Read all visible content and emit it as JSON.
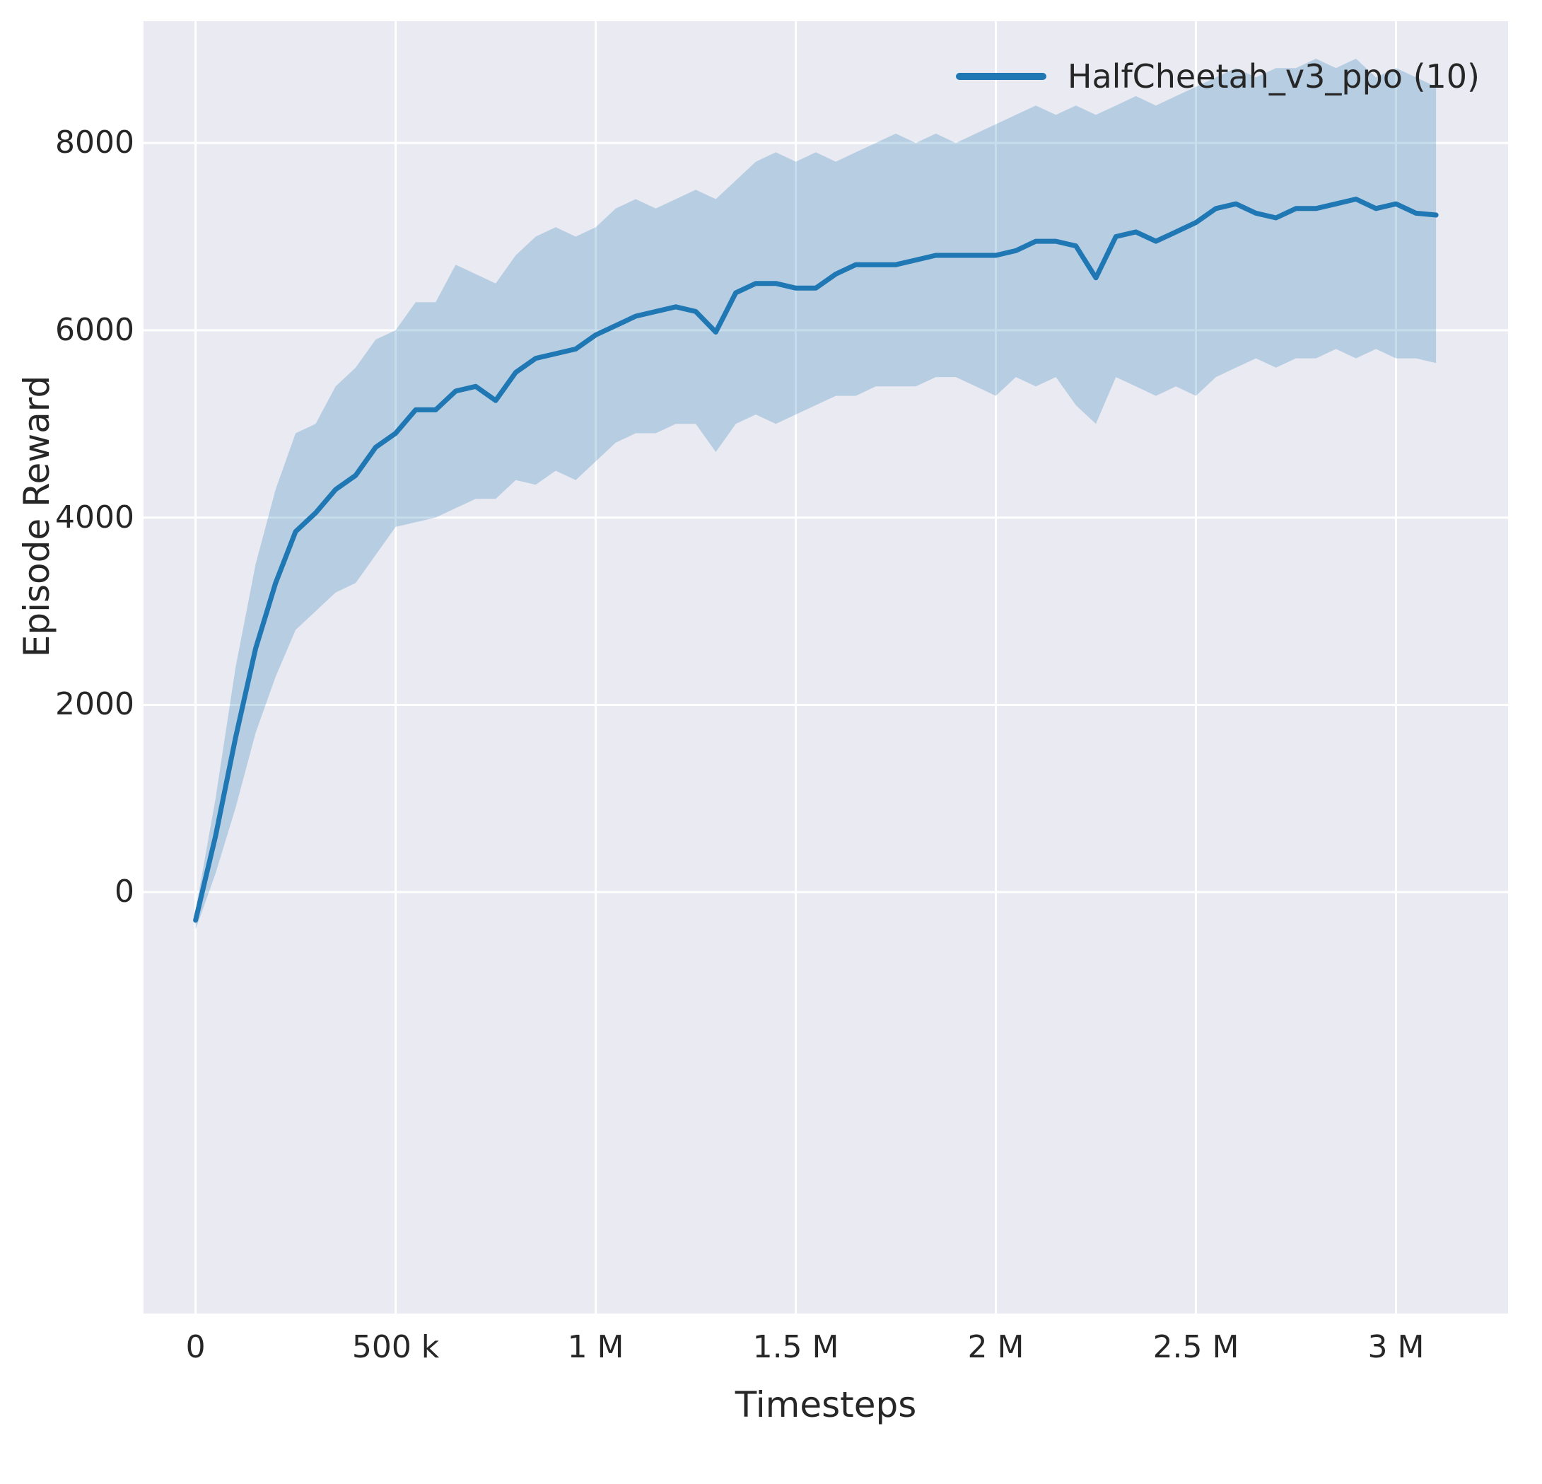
{
  "chart_data": {
    "type": "line",
    "title": "",
    "xlabel": "Timesteps",
    "ylabel": "Episode Reward",
    "x_units": "millions",
    "xlim": [
      -0.13,
      3.28
    ],
    "ylim": [
      -4500,
      9300
    ],
    "grid": true,
    "grid_color": "#ffffff",
    "plot_background": "#eaeaf2",
    "legend_position": "upper right",
    "x_ticks": [
      0,
      0.5,
      1.0,
      1.5,
      2.0,
      2.5,
      3.0
    ],
    "x_tick_labels": [
      "0",
      "500 k",
      "1 M",
      "1.5 M",
      "2 M",
      "2.5 M",
      "3 M"
    ],
    "y_ticks": [
      0,
      2000,
      4000,
      6000,
      8000
    ],
    "y_tick_labels": [
      "0",
      "2000",
      "4000",
      "6000",
      "8000"
    ],
    "series": [
      {
        "name": "HalfCheetah_v3_ppo (10)",
        "color": "#1f77b4",
        "band_color": "rgba(31,119,180,0.25)",
        "x": [
          0,
          0.05,
          0.1,
          0.15,
          0.2,
          0.25,
          0.3,
          0.35,
          0.4,
          0.45,
          0.5,
          0.55,
          0.6,
          0.65,
          0.7,
          0.75,
          0.8,
          0.85,
          0.9,
          0.95,
          1.0,
          1.05,
          1.1,
          1.15,
          1.2,
          1.25,
          1.3,
          1.35,
          1.4,
          1.45,
          1.5,
          1.55,
          1.6,
          1.65,
          1.7,
          1.75,
          1.8,
          1.85,
          1.9,
          1.95,
          2.0,
          2.05,
          2.1,
          2.15,
          2.2,
          2.25,
          2.3,
          2.35,
          2.4,
          2.45,
          2.5,
          2.55,
          2.6,
          2.65,
          2.7,
          2.75,
          2.8,
          2.85,
          2.9,
          2.95,
          3.0,
          3.05,
          3.1
        ],
        "mean": [
          -300,
          600,
          1650,
          2600,
          3300,
          3850,
          4050,
          4300,
          4450,
          4750,
          4900,
          5150,
          5150,
          5350,
          5400,
          5250,
          5550,
          5700,
          5750,
          5800,
          5950,
          6050,
          6150,
          6200,
          6250,
          6200,
          5980,
          6400,
          6500,
          6500,
          6450,
          6450,
          6600,
          6700,
          6700,
          6700,
          6750,
          6800,
          6800,
          6800,
          6800,
          6850,
          6950,
          6950,
          6900,
          6560,
          7000,
          7050,
          6950,
          7050,
          7150,
          7300,
          7350,
          7250,
          7200,
          7300,
          7300,
          7350,
          7400,
          7300,
          7350,
          7250,
          7230
        ],
        "lower": [
          -400,
          200,
          900,
          1700,
          2300,
          2800,
          3000,
          3200,
          3300,
          3600,
          3900,
          3950,
          4000,
          4100,
          4200,
          4200,
          4400,
          4350,
          4500,
          4400,
          4600,
          4800,
          4900,
          4900,
          5000,
          5000,
          4700,
          5000,
          5100,
          5000,
          5100,
          5200,
          5300,
          5300,
          5400,
          5400,
          5400,
          5500,
          5500,
          5400,
          5300,
          5500,
          5400,
          5500,
          5200,
          5000,
          5500,
          5400,
          5300,
          5400,
          5300,
          5500,
          5600,
          5700,
          5600,
          5700,
          5700,
          5800,
          5700,
          5800,
          5700,
          5700,
          5650
        ],
        "upper": [
          -200,
          1000,
          2400,
          3500,
          4300,
          4900,
          5000,
          5400,
          5600,
          5900,
          6000,
          6300,
          6300,
          6700,
          6600,
          6500,
          6800,
          7000,
          7100,
          7000,
          7100,
          7300,
          7400,
          7300,
          7400,
          7500,
          7400,
          7600,
          7800,
          7900,
          7800,
          7900,
          7800,
          7900,
          8000,
          8100,
          8000,
          8100,
          8000,
          8100,
          8200,
          8300,
          8400,
          8300,
          8400,
          8300,
          8400,
          8500,
          8400,
          8500,
          8600,
          8700,
          8800,
          8700,
          8800,
          8800,
          8900,
          8800,
          8900,
          8700,
          8800,
          8700,
          8600
        ]
      }
    ]
  }
}
